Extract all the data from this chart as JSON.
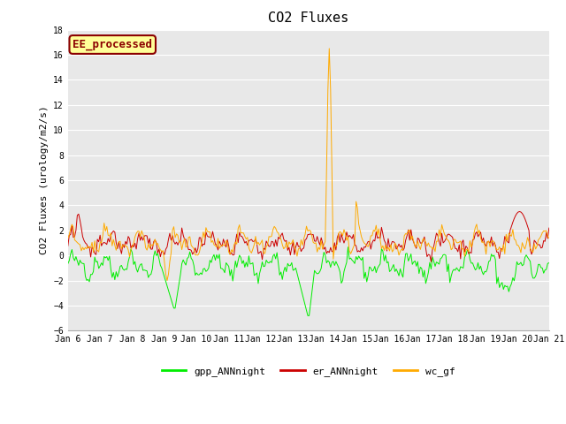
{
  "title": "CO2 Fluxes",
  "ylabel": "CO2 Fluxes (urology/m2/s)",
  "xlabel": "",
  "ylim": [
    -6,
    18
  ],
  "yticks": [
    -6,
    -4,
    -2,
    0,
    2,
    4,
    6,
    8,
    10,
    12,
    14,
    16,
    18
  ],
  "background_color": "#e8e8e8",
  "fig_color": "#ffffff",
  "annotation_text": "EE_processed",
  "annotation_facecolor": "#ffff99",
  "annotation_edgecolor": "#8b0000",
  "legend_labels": [
    "gpp_ANNnight",
    "er_ANNnight",
    "wc_gf"
  ],
  "line_colors": [
    "#00ee00",
    "#cc0000",
    "#ffaa00"
  ],
  "title_fontsize": 11,
  "n_points": 360,
  "x_start": 6,
  "x_end": 21,
  "xtick_labels": [
    "Jan 6",
    "Jan 7",
    "Jan 8",
    "Jan 9",
    "Jan 10",
    "Jan 11",
    "Jan 12",
    "Jan 13",
    "Jan 14",
    "Jan 15",
    "Jan 16",
    "Jan 17",
    "Jan 18",
    "Jan 19",
    "Jan 20",
    "Jan 21"
  ],
  "xtick_positions": [
    6,
    7,
    8,
    9,
    10,
    11,
    12,
    13,
    14,
    15,
    16,
    17,
    18,
    19,
    20,
    21
  ]
}
